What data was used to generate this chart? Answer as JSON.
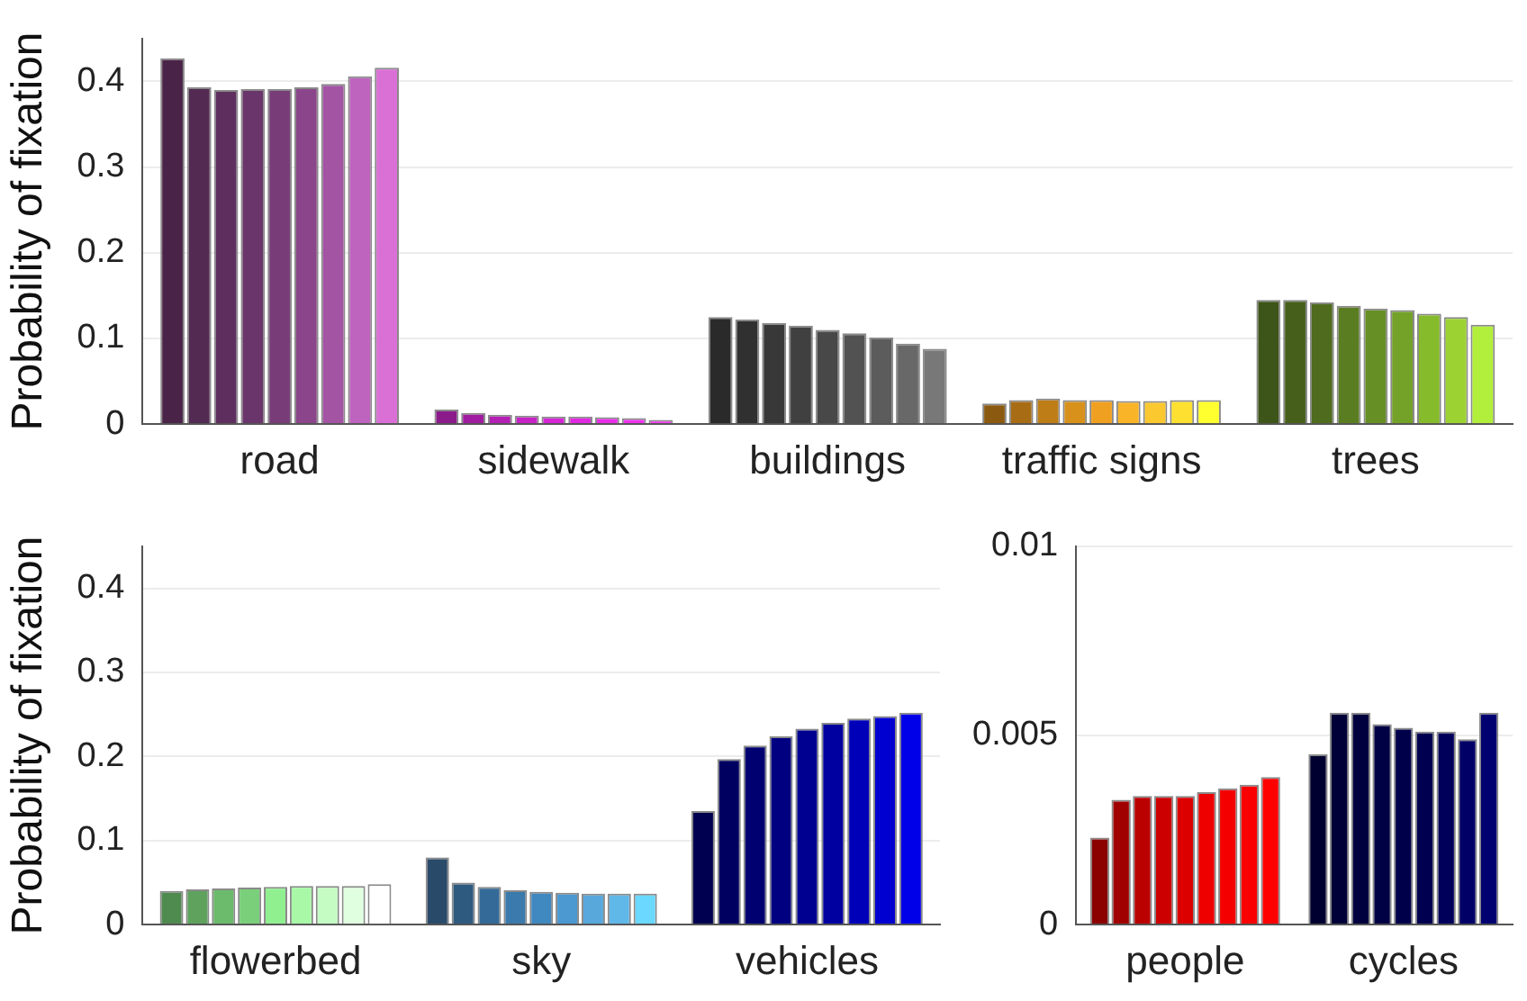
{
  "chart_data": [
    {
      "type": "bar",
      "ylabel": "Probability of fixation",
      "categories": [
        "road",
        "sidewalk",
        "buildings",
        "traffic signs",
        "trees"
      ],
      "ylim": [
        0,
        0.45
      ],
      "yticks": [
        0,
        0.1,
        0.2,
        0.3,
        0.4
      ],
      "grid": "y",
      "series": [
        {
          "values": [
            0.427,
            0.017,
            0.125,
            0.024,
            0.145
          ],
          "colors": [
            "#4a2448",
            "#8b1a8b",
            "#2a2a2a",
            "#8b5a10",
            "#3d5518"
          ]
        },
        {
          "values": [
            0.393,
            0.013,
            0.122,
            0.028,
            0.145
          ],
          "colors": [
            "#532a52",
            "#a01ca0",
            "#303030",
            "#a86c15",
            "#465f1a"
          ]
        },
        {
          "values": [
            0.39,
            0.011,
            0.118,
            0.03,
            0.142
          ],
          "colors": [
            "#5e2f5e",
            "#b41fb4",
            "#383838",
            "#bf7d18",
            "#4f6b1e"
          ]
        },
        {
          "values": [
            0.391,
            0.01,
            0.115,
            0.028,
            0.138
          ],
          "colors": [
            "#6a356b",
            "#c622c6",
            "#404040",
            "#d8921c",
            "#5a7d22"
          ]
        },
        {
          "values": [
            0.391,
            0.009,
            0.11,
            0.028,
            0.135
          ],
          "colors": [
            "#783c78",
            "#d625d6",
            "#484848",
            "#f0a020",
            "#668f25"
          ]
        },
        {
          "values": [
            0.393,
            0.009,
            0.106,
            0.027,
            0.133
          ],
          "colors": [
            "#8b468b",
            "#e028e0",
            "#525252",
            "#fab428",
            "#74a128"
          ]
        },
        {
          "values": [
            0.397,
            0.008,
            0.101,
            0.027,
            0.129
          ],
          "colors": [
            "#a354a3",
            "#e82ce8",
            "#5c5c5c",
            "#fcc830",
            "#86bb2c"
          ]
        },
        {
          "values": [
            0.406,
            0.007,
            0.094,
            0.028,
            0.125
          ],
          "colors": [
            "#be63be",
            "#ee33ee",
            "#686868",
            "#fde030",
            "#9cd332"
          ]
        },
        {
          "values": [
            0.416,
            0.005,
            0.088,
            0.028,
            0.116
          ],
          "colors": [
            "#da70d6",
            "#f03cf0",
            "#787878",
            "#ffff30",
            "#b2ef3c"
          ]
        }
      ]
    },
    {
      "type": "bar",
      "ylabel": "Probability of fixation",
      "categories": [
        "flowerbed",
        "sky",
        "vehicles"
      ],
      "ylim": [
        0,
        0.45
      ],
      "yticks": [
        0,
        0.1,
        0.2,
        0.3,
        0.4
      ],
      "grid": "y",
      "series": [
        {
          "values": [
            0.04,
            0.08,
            0.135
          ],
          "colors": [
            "#4f8a4f",
            "#2a4a6a",
            "#000050"
          ]
        },
        {
          "values": [
            0.042,
            0.05,
            0.197
          ],
          "colors": [
            "#5ea25e",
            "#2e5a80",
            "#000060"
          ]
        },
        {
          "values": [
            0.043,
            0.045,
            0.213
          ],
          "colors": [
            "#6cba6c",
            "#346a98",
            "#000070"
          ]
        },
        {
          "values": [
            0.044,
            0.041,
            0.224
          ],
          "colors": [
            "#7ad07a",
            "#3a7aac",
            "#000080"
          ]
        },
        {
          "values": [
            0.045,
            0.039,
            0.233
          ],
          "colors": [
            "#90f090",
            "#4088c0",
            "#000090"
          ]
        },
        {
          "values": [
            0.046,
            0.038,
            0.24
          ],
          "colors": [
            "#a8f8a8",
            "#4c98d0",
            "#0000a0"
          ]
        },
        {
          "values": [
            0.046,
            0.037,
            0.245
          ],
          "colors": [
            "#c4fcc4",
            "#58a8dc",
            "#0000b8"
          ]
        },
        {
          "values": [
            0.046,
            0.037,
            0.248
          ],
          "colors": [
            "#e0ffe0",
            "#60b8e8",
            "#0000d0"
          ]
        },
        {
          "values": [
            0.048,
            0.037,
            0.252
          ],
          "colors": [
            "#ffffff",
            "#6ad8ff",
            "#0000e8"
          ]
        }
      ]
    },
    {
      "type": "bar",
      "categories": [
        "people",
        "cycles"
      ],
      "ylim": [
        0,
        0.01
      ],
      "yticks": [
        0,
        0.005,
        0.01
      ],
      "grid": "y",
      "series": [
        {
          "values": [
            0.0023,
            0.0045
          ],
          "colors": [
            "#8b0000",
            "#000030"
          ]
        },
        {
          "values": [
            0.0033,
            0.0056
          ],
          "colors": [
            "#a00000",
            "#000038"
          ]
        },
        {
          "values": [
            0.0034,
            0.0056
          ],
          "colors": [
            "#bb0000",
            "#00003e"
          ]
        },
        {
          "values": [
            0.0034,
            0.0053
          ],
          "colors": [
            "#cc0000",
            "#000044"
          ]
        },
        {
          "values": [
            0.0034,
            0.0052
          ],
          "colors": [
            "#dd0000",
            "#00004a"
          ]
        },
        {
          "values": [
            0.0035,
            0.0051
          ],
          "colors": [
            "#ee0000",
            "#000050"
          ]
        },
        {
          "values": [
            0.0036,
            0.0051
          ],
          "colors": [
            "#f40000",
            "#00005a"
          ]
        },
        {
          "values": [
            0.0037,
            0.0049
          ],
          "colors": [
            "#fa0000",
            "#000066"
          ]
        },
        {
          "values": [
            0.0039,
            0.0056
          ],
          "colors": [
            "#ff0000",
            "#000070"
          ]
        }
      ]
    }
  ]
}
